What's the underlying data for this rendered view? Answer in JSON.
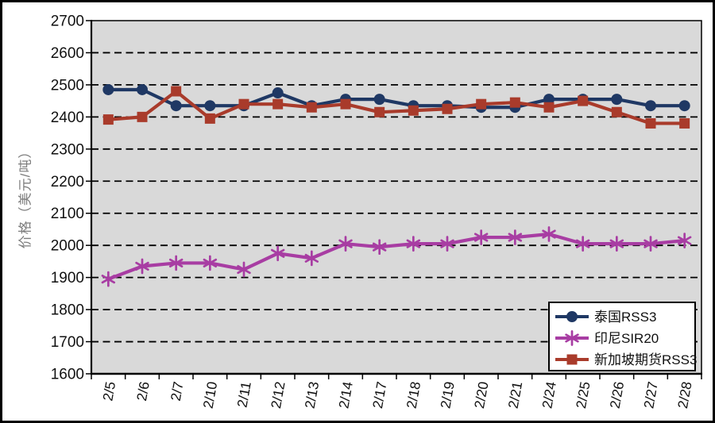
{
  "frame": {
    "background": "#ffffff",
    "border_color": "#000000"
  },
  "chart_data": {
    "type": "line",
    "title": "",
    "xlabel": "",
    "ylabel": "价格（美元/吨）",
    "ylim": [
      1600,
      2700
    ],
    "yticks": [
      1600,
      1700,
      1800,
      1900,
      2000,
      2100,
      2200,
      2300,
      2400,
      2500,
      2600,
      2700
    ],
    "grid": "horizontal-dashed",
    "legend_position": "bottom-right-inside",
    "colors": {
      "plot_bg": "#d9d9d9",
      "axis": "#000000",
      "gridline": "#000000",
      "tick_label": "#111111",
      "y_axis_title": "#7d7d7d",
      "legend_bg": "#ffffff",
      "legend_border": "#000000"
    },
    "categories": [
      "2/5",
      "2/6",
      "2/7",
      "2/10",
      "2/11",
      "2/12",
      "2/13",
      "2/14",
      "2/17",
      "2/18",
      "2/19",
      "2/20",
      "2/21",
      "2/24",
      "2/25",
      "2/26",
      "2/27",
      "2/28"
    ],
    "series": [
      {
        "key": "thailand-rss3",
        "name": "泰国RSS3",
        "color": "#1f3864",
        "marker": "circle",
        "values": [
          2485,
          2485,
          2435,
          2435,
          2435,
          2475,
          2435,
          2455,
          2455,
          2435,
          2435,
          2430,
          2430,
          2455,
          2455,
          2455,
          2435,
          2435
        ]
      },
      {
        "key": "indonesia-sir20",
        "name": "印尼SIR20",
        "color": "#a83da3",
        "marker": "asterisk",
        "values": [
          1895,
          1935,
          1945,
          1945,
          1925,
          1975,
          1960,
          2005,
          1995,
          2005,
          2005,
          2025,
          2025,
          2035,
          2005,
          2005,
          2005,
          2015
        ]
      },
      {
        "key": "singapore-futures-rss3",
        "name": "新加坡期货RSS3",
        "color": "#a93b2b",
        "marker": "square",
        "values": [
          2392,
          2400,
          2480,
          2395,
          2440,
          2440,
          2430,
          2440,
          2415,
          2420,
          2425,
          2440,
          2445,
          2430,
          2450,
          2415,
          2380,
          2380
        ]
      }
    ]
  }
}
